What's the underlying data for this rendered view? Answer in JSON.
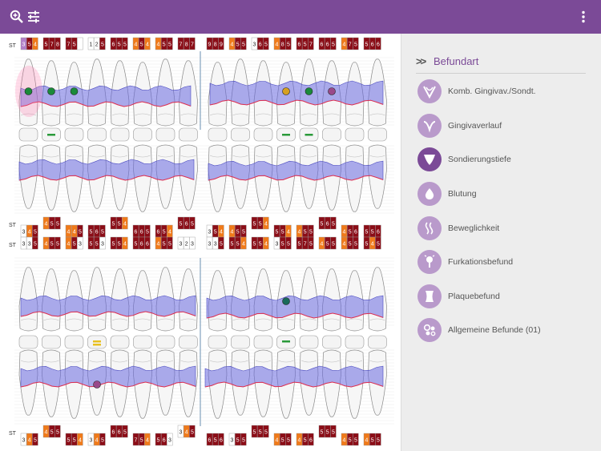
{
  "toolbar": {
    "zoom_icon": "zoom-in-icon",
    "settings_icon": "sliders-icon",
    "menu_icon": "more-vertical-icon"
  },
  "colors": {
    "accent": "#7b4a97",
    "accent_light": "#b99acb",
    "cell_red": "#8b0d17",
    "cell_orange": "#f07a1a",
    "cell_purple": "#b27fc8",
    "pocket_fill": "#6a6ae0",
    "gum_line": "#e03050",
    "highlight": "#ff6fa8"
  },
  "sidebar": {
    "title": "Befundart",
    "items": [
      {
        "label": "Komb. Gingivav./Sondt.",
        "icon": "combined-gingiva-probing-icon",
        "active": false
      },
      {
        "label": "Gingivaverlauf",
        "icon": "gingiva-curve-icon",
        "active": false
      },
      {
        "label": "Sondierungstiefe",
        "icon": "probing-depth-icon",
        "active": true
      },
      {
        "label": "Blutung",
        "icon": "blood-drop-icon",
        "active": false
      },
      {
        "label": "Beweglichkeit",
        "icon": "mobility-waves-icon",
        "active": false
      },
      {
        "label": "Furkationsbefund",
        "icon": "furcation-icon",
        "active": false
      },
      {
        "label": "Plaquebefund",
        "icon": "plaque-icon",
        "active": false
      },
      {
        "label": "Allgemeine Befunde (01)",
        "icon": "general-findings-icon",
        "active": false
      }
    ]
  },
  "chart": {
    "st_label": "ST",
    "rows": [
      {
        "name": "upper-buccal-depths",
        "st": true,
        "cells": [
          [
            "3",
            "5",
            "4"
          ],
          [
            "5",
            "7",
            "8"
          ],
          [
            "7",
            "5",
            ""
          ],
          [
            "1",
            "2",
            "5"
          ],
          [
            "6",
            "5",
            "5"
          ],
          [
            "4",
            "5",
            "4"
          ],
          [
            "4",
            "5",
            "5"
          ],
          [
            "7",
            "8",
            "7"
          ],
          [
            "9",
            "8",
            "9"
          ],
          [
            "4",
            "5",
            "5"
          ],
          [
            "3",
            "6",
            "5"
          ],
          [
            "4",
            "8",
            "5"
          ],
          [
            "6",
            "5",
            "7"
          ],
          [
            "6",
            "6",
            "5"
          ],
          [
            "4",
            "7",
            "5"
          ],
          [
            "5",
            "6",
            "6"
          ]
        ]
      },
      {
        "name": "upper-palatal-depths",
        "st": true,
        "cells": [
          [
            "3",
            "4",
            "5"
          ],
          [
            "4",
            "5",
            "5"
          ],
          [
            "4",
            "4",
            "5"
          ],
          [
            "5",
            "6",
            "5"
          ],
          [
            "5",
            "5",
            "4"
          ],
          [
            "6",
            "6",
            "5"
          ],
          [
            "6",
            "5",
            "4"
          ],
          [
            "5",
            "6",
            "5"
          ],
          [
            "3",
            "5",
            "4"
          ],
          [
            "4",
            "5",
            "5"
          ],
          [
            "5",
            "5",
            "4"
          ],
          [
            "5",
            "5",
            "4"
          ],
          [
            "4",
            "5",
            "5"
          ],
          [
            "5",
            "6",
            "5"
          ],
          [
            "4",
            "5",
            "6"
          ],
          [
            "5",
            "5",
            "6"
          ]
        ]
      },
      {
        "name": "lower-lingual-depths",
        "st": true,
        "cells": [
          [
            "3",
            "3",
            "5"
          ],
          [
            "4",
            "5",
            "5"
          ],
          [
            "4",
            "5",
            "3"
          ],
          [
            "5",
            "5",
            "3"
          ],
          [
            "5",
            "5",
            "4"
          ],
          [
            "5",
            "6",
            "6"
          ],
          [
            "4",
            "5",
            "5"
          ],
          [
            "3",
            "2",
            "3"
          ],
          [
            "3",
            "3",
            "5"
          ],
          [
            "5",
            "5",
            "4"
          ],
          [
            "5",
            "5",
            "4"
          ],
          [
            "3",
            "5",
            "5"
          ],
          [
            "5",
            "7",
            "5"
          ],
          [
            "4",
            "5",
            "5"
          ],
          [
            "4",
            "5",
            "5"
          ],
          [
            "5",
            "4",
            "5"
          ]
        ]
      },
      {
        "name": "lower-buccal-depths",
        "st": true,
        "cells": [
          [
            "3",
            "4",
            "5"
          ],
          [
            "4",
            "5",
            "5"
          ],
          [
            "5",
            "5",
            "4"
          ],
          [
            "3",
            "4",
            "5"
          ],
          [
            "6",
            "6",
            "5"
          ],
          [
            "7",
            "5",
            "4"
          ],
          [
            "5",
            "6",
            "3"
          ],
          [
            "3",
            "4",
            "5"
          ],
          [
            "6",
            "5",
            "6"
          ],
          [
            "3",
            "5",
            "5"
          ],
          [
            "5",
            "5",
            "5"
          ],
          [
            "4",
            "5",
            "5"
          ],
          [
            "4",
            "5",
            "6"
          ],
          [
            "5",
            "5",
            "5"
          ],
          [
            "4",
            "5",
            "5"
          ],
          [
            "4",
            "5",
            "5"
          ]
        ]
      }
    ],
    "upper_findings": [
      {
        "tooth": 0,
        "type": "circle",
        "color": "#1a8a3a"
      },
      {
        "tooth": 1,
        "type": "circle",
        "color": "#1a8a3a"
      },
      {
        "tooth": 2,
        "type": "circle",
        "color": "#1a8a3a"
      },
      {
        "tooth": 11,
        "type": "circle",
        "color": "#d6a020"
      },
      {
        "tooth": 12,
        "type": "circle",
        "color": "#1a8a3a"
      },
      {
        "tooth": 13,
        "type": "circle",
        "color": "#9a4a8a"
      }
    ],
    "lower_findings": [
      {
        "tooth": 11,
        "type": "circle",
        "color": "#1a6a5a"
      },
      {
        "tooth": 3,
        "type": "circle",
        "color": "#9a4a8a"
      }
    ],
    "upper_implant_marks": [
      1,
      11,
      12
    ],
    "lower_implant_marks": [
      3,
      11
    ]
  }
}
